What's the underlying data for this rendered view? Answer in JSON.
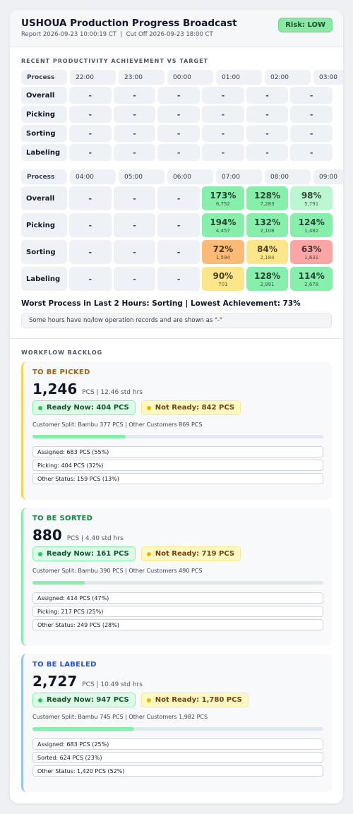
{
  "header": {
    "title": "USHOUA Production Progress Broadcast",
    "meta": "Report 2026-09-23 10:00:19 CT  |  Cut Off 2026-09-23 18:00 CT",
    "risk": "Risk: LOW"
  },
  "productivity": {
    "title": "RECENT PRODUCTIVITY ACHIEVEMENT VS TARGET",
    "tables": [
      {
        "header": [
          "Process",
          "22:00",
          "23:00",
          "00:00",
          "01:00",
          "02:00",
          "03:00"
        ],
        "rows": [
          {
            "name": "Overall",
            "cells": [
              "-",
              "-",
              "-",
              "-",
              "-",
              "-"
            ]
          },
          {
            "name": "Picking",
            "cells": [
              "-",
              "-",
              "-",
              "-",
              "-",
              "-"
            ]
          },
          {
            "name": "Sorting",
            "cells": [
              "-",
              "-",
              "-",
              "-",
              "-",
              "-"
            ]
          },
          {
            "name": "Labeling",
            "cells": [
              "-",
              "-",
              "-",
              "-",
              "-",
              "-"
            ]
          }
        ]
      },
      {
        "header": [
          "Process",
          "04:00",
          "05:00",
          "06:00",
          "07:00",
          "08:00",
          "09:00"
        ],
        "rows": [
          {
            "name": "Overall",
            "cells": [
              "-",
              "-",
              "-",
              {
                "pct": "173%",
                "count": "6,752",
                "color": "#86efac"
              },
              {
                "pct": "128%",
                "count": "7,283",
                "color": "#86efac"
              },
              {
                "pct": "98%",
                "count": "5,791",
                "color": "#bbf7d0"
              }
            ]
          },
          {
            "name": "Picking",
            "cells": [
              "-",
              "-",
              "-",
              {
                "pct": "194%",
                "count": "4,457",
                "color": "#86efac"
              },
              {
                "pct": "132%",
                "count": "2,108",
                "color": "#86efac"
              },
              {
                "pct": "124%",
                "count": "1,482",
                "color": "#86efac"
              }
            ]
          },
          {
            "name": "Sorting",
            "cells": [
              "-",
              "-",
              "-",
              {
                "pct": "72%",
                "count": "1,594",
                "color": "#fdba74"
              },
              {
                "pct": "84%",
                "count": "2,184",
                "color": "#fde68a"
              },
              {
                "pct": "63%",
                "count": "1,631",
                "color": "#fca5a5"
              }
            ]
          },
          {
            "name": "Labeling",
            "cells": [
              "-",
              "-",
              "-",
              {
                "pct": "90%",
                "count": "701",
                "color": "#fde68a"
              },
              {
                "pct": "128%",
                "count": "2,991",
                "color": "#86efac"
              },
              {
                "pct": "114%",
                "count": "2,678",
                "color": "#86efac"
              }
            ]
          }
        ]
      }
    ],
    "worst": "Worst Process in Last 2 Hours: Sorting | Lowest Achievement: 73%",
    "note": "Some hours have no/low operation records and are shown as \"-\""
  },
  "backlog": {
    "title": "WORKFLOW BACKLOG",
    "cards": [
      {
        "title": "TO BE PICKED",
        "total": "1,246",
        "unit": "PCS | 12.46 std hrs",
        "ready": "Ready Now: 404 PCS",
        "not_ready": "Not Ready: 842 PCS",
        "split": "Customer Split: Bambu 377 PCS | Other Customers 869 PCS",
        "progress": 32,
        "statuses": [
          "Assigned: 683 PCS (55%)",
          "Picking: 404 PCS (32%)",
          "Other Status: 159 PCS (13%)"
        ]
      },
      {
        "title": "TO BE SORTED",
        "total": "880",
        "unit": "PCS | 4.40 std hrs",
        "ready": "Ready Now: 161 PCS",
        "not_ready": "Not Ready: 719 PCS",
        "split": "Customer Split: Bambu 390 PCS | Other Customers 490 PCS",
        "progress": 18,
        "statuses": [
          "Assigned: 414 PCS (47%)",
          "Picking: 217 PCS (25%)",
          "Other Status: 249 PCS (28%)"
        ]
      },
      {
        "title": "TO BE LABELED",
        "total": "2,727",
        "unit": "PCS | 10.49 std hrs",
        "ready": "Ready Now: 947 PCS",
        "not_ready": "Not Ready: 1,780 PCS",
        "split": "Customer Split: Bambu 745 PCS | Other Customers 1,982 PCS",
        "progress": 35,
        "statuses": [
          "Assigned: 683 PCS (25%)",
          "Sorted: 624 PCS (23%)",
          "Other Status: 1,420 PCS (52%)"
        ]
      }
    ]
  }
}
